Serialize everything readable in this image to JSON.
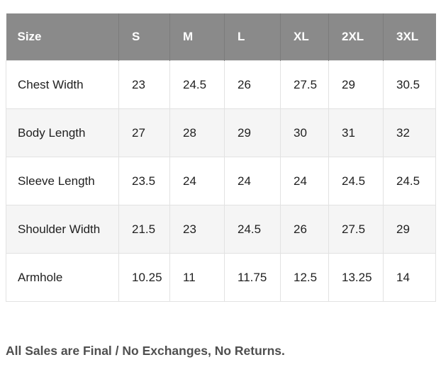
{
  "table": {
    "columns": [
      "Size",
      "S",
      "M",
      "L",
      "XL",
      "2XL",
      "3XL"
    ],
    "rows": [
      {
        "label": "Chest Width",
        "values": [
          "23",
          "24.5",
          "26",
          "27.5",
          "29",
          "30.5"
        ]
      },
      {
        "label": "Body Length",
        "values": [
          "27",
          "28",
          "29",
          "30",
          "31",
          "32"
        ]
      },
      {
        "label": "Sleeve Length",
        "values": [
          "23.5",
          "24",
          "24",
          "24",
          "24.5",
          "24.5"
        ]
      },
      {
        "label": "Shoulder Width",
        "values": [
          "21.5",
          "23",
          "24.5",
          "26",
          "27.5",
          "29"
        ]
      },
      {
        "label": "Armhole",
        "values": [
          "10.25",
          "11",
          "11.75",
          "12.5",
          "13.25",
          "14"
        ]
      }
    ],
    "colors": {
      "header_bg": "#8a8a8a",
      "header_text": "#ffffff",
      "header_divider": "#7c7c7c",
      "body_border": "#e2e2e2",
      "alt_row_bg": "#f5f5f5",
      "body_text": "#1f1f1f"
    }
  },
  "footer": {
    "note": "All Sales are Final / No Exchanges, No Returns.",
    "color": "#4f4f4f"
  },
  "chart_data": {
    "type": "table",
    "columns": [
      "Size",
      "S",
      "M",
      "L",
      "XL",
      "2XL",
      "3XL"
    ],
    "rows": [
      {
        "label": "Chest Width",
        "values": [
          23,
          24.5,
          26,
          27.5,
          29,
          30.5
        ]
      },
      {
        "label": "Body Length",
        "values": [
          27,
          28,
          29,
          30,
          31,
          32
        ]
      },
      {
        "label": "Sleeve Length",
        "values": [
          23.5,
          24,
          24,
          24,
          24.5,
          24.5
        ]
      },
      {
        "label": "Shoulder Width",
        "values": [
          21.5,
          23,
          24.5,
          26,
          27.5,
          29
        ]
      },
      {
        "label": "Armhole",
        "values": [
          10.25,
          11,
          11.75,
          12.5,
          13.25,
          14
        ]
      }
    ],
    "annotations": [
      "All Sales are Final / No Exchanges, No Returns."
    ]
  }
}
